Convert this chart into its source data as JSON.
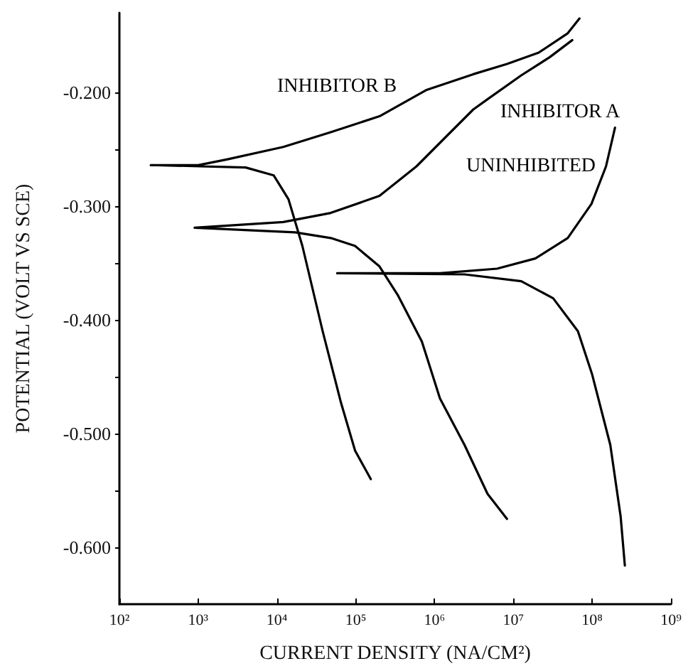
{
  "chart_data": {
    "type": "line",
    "xlabel": "CURRENT DENSITY (NA/CM²)",
    "ylabel": "POTENTIAL (VOLT VS SCE)",
    "log": "x",
    "grid": false,
    "legend": false,
    "marker": "none",
    "line_style": "solid",
    "xlim": [
      100,
      1000000000
    ],
    "xticks": [
      {
        "value": 100,
        "label": "10²"
      },
      {
        "value": 1000,
        "label": "10³"
      },
      {
        "value": 10000,
        "label": "10⁴"
      },
      {
        "value": 100000,
        "label": "10⁵"
      },
      {
        "value": 1000000,
        "label": "10⁶"
      },
      {
        "value": 10000000,
        "label": "10⁷"
      },
      {
        "value": 100000000,
        "label": "10⁸"
      },
      {
        "value": 1000000000,
        "label": "10⁹"
      }
    ],
    "ylim": [
      -0.65,
      -0.13
    ],
    "yticks": [
      {
        "value": -0.6,
        "label": "-0.600"
      },
      {
        "value": -0.55,
        "label": null
      },
      {
        "value": -0.5,
        "label": "-0.500"
      },
      {
        "value": -0.45,
        "label": null
      },
      {
        "value": -0.4,
        "label": "-0.400"
      },
      {
        "value": -0.35,
        "label": null
      },
      {
        "value": -0.3,
        "label": "-0.300"
      },
      {
        "value": -0.25,
        "label": null
      },
      {
        "value": -0.2,
        "label": "-0.200"
      }
    ],
    "series": [
      {
        "name": "INHIBITOR B",
        "color": "#000000",
        "x": [
          69000000,
          49000000,
          21000000,
          8300000,
          3100000,
          780000,
          200000,
          48000,
          12000,
          2300,
          1000,
          250,
          300,
          4000,
          9100,
          14000,
          21000,
          38000,
          65000,
          98000,
          155000
        ],
        "values": [
          -0.135,
          -0.148,
          -0.165,
          -0.175,
          -0.184,
          -0.198,
          -0.221,
          -0.235,
          -0.248,
          -0.259,
          -0.264,
          -0.264,
          -0.264,
          -0.266,
          -0.273,
          -0.294,
          -0.335,
          -0.41,
          -0.473,
          -0.515,
          -0.54
        ]
      },
      {
        "name": "INHIBITOR A",
        "color": "#000000",
        "x": [
          56000000,
          29000000,
          12600000,
          4700000,
          3100000,
          1350000,
          590000,
          200000,
          48000,
          12000,
          900,
          17000,
          48000,
          98000,
          200000,
          340000,
          690000,
          1170000,
          2400000,
          4700000,
          8300000
        ],
        "values": [
          -0.154,
          -0.169,
          -0.185,
          -0.206,
          -0.215,
          -0.24,
          -0.265,
          -0.291,
          -0.306,
          -0.314,
          -0.319,
          -0.323,
          -0.328,
          -0.335,
          -0.353,
          -0.378,
          -0.419,
          -0.469,
          -0.51,
          -0.553,
          -0.575
        ]
      },
      {
        "name": "UNINHIBITED",
        "color": "#000000",
        "x": [
          195000000,
          150000000,
          98000000,
          49000000,
          19000000,
          6200000,
          1170000,
          58000,
          2400000,
          12600000,
          32000000,
          66000000,
          100000000,
          170000000,
          230000000,
          260000000
        ],
        "values": [
          -0.231,
          -0.265,
          -0.298,
          -0.328,
          -0.346,
          -0.355,
          -0.359,
          -0.359,
          -0.36,
          -0.366,
          -0.381,
          -0.41,
          -0.448,
          -0.51,
          -0.573,
          -0.616
        ]
      }
    ]
  }
}
